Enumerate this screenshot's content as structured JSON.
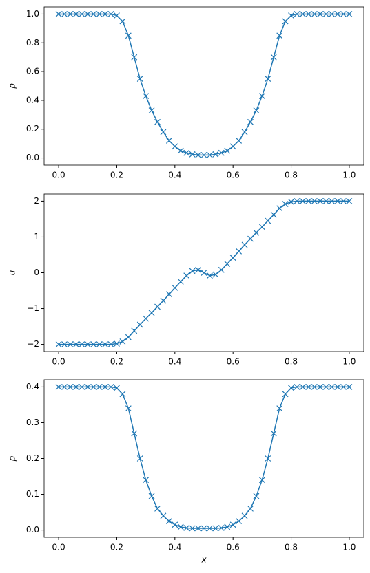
{
  "chart_data": [
    {
      "type": "line",
      "ylabel": "ρ",
      "color": "#1f77b4",
      "x": [
        0,
        0.02,
        0.04,
        0.06,
        0.08,
        0.1,
        0.12,
        0.14,
        0.16,
        0.18,
        0.2,
        0.22,
        0.24,
        0.26,
        0.28,
        0.3,
        0.32,
        0.34,
        0.36,
        0.38,
        0.4,
        0.42,
        0.44,
        0.46,
        0.48,
        0.5,
        0.52,
        0.54,
        0.56,
        0.58,
        0.6,
        0.62,
        0.64,
        0.66,
        0.68,
        0.7,
        0.72,
        0.74,
        0.76,
        0.78,
        0.8,
        0.82,
        0.84,
        0.86,
        0.88,
        0.9,
        0.92,
        0.94,
        0.96,
        0.98,
        1
      ],
      "values": [
        1,
        1,
        1,
        1,
        1,
        1,
        1,
        1,
        1,
        1,
        0.99,
        0.95,
        0.85,
        0.7,
        0.55,
        0.43,
        0.33,
        0.25,
        0.18,
        0.12,
        0.08,
        0.05,
        0.035,
        0.025,
        0.02,
        0.02,
        0.02,
        0.025,
        0.035,
        0.05,
        0.08,
        0.12,
        0.18,
        0.25,
        0.33,
        0.43,
        0.55,
        0.7,
        0.85,
        0.95,
        0.99,
        1,
        1,
        1,
        1,
        1,
        1,
        1,
        1,
        1,
        1
      ],
      "xlim": [
        -0.05,
        1.05
      ],
      "ylim": [
        -0.05,
        1.05
      ],
      "xticks": [
        {
          "value": 0,
          "label": "0.0"
        },
        0.2,
        0.4,
        0.6,
        0.8,
        {
          "value": 1,
          "label": "1.0"
        }
      ],
      "yticks": [
        {
          "value": 0,
          "label": "0.0"
        },
        0.2,
        0.4,
        0.6,
        0.8,
        {
          "value": 1,
          "label": "1.0"
        }
      ]
    },
    {
      "type": "line",
      "ylabel": "u",
      "color": "#1f77b4",
      "x": [
        0,
        0.02,
        0.04,
        0.06,
        0.08,
        0.1,
        0.12,
        0.14,
        0.16,
        0.18,
        0.2,
        0.22,
        0.24,
        0.26,
        0.28,
        0.3,
        0.32,
        0.34,
        0.36,
        0.38,
        0.4,
        0.42,
        0.44,
        0.46,
        0.48,
        0.5,
        0.52,
        0.54,
        0.56,
        0.58,
        0.6,
        0.62,
        0.64,
        0.66,
        0.68,
        0.7,
        0.72,
        0.74,
        0.76,
        0.78,
        0.8,
        0.82,
        0.84,
        0.86,
        0.88,
        0.9,
        0.92,
        0.94,
        0.96,
        0.98,
        1
      ],
      "values": [
        -2,
        -2,
        -2,
        -2,
        -2,
        -2,
        -2,
        -2,
        -2,
        -2,
        -1.98,
        -1.92,
        -1.8,
        -1.62,
        -1.45,
        -1.28,
        -1.12,
        -0.95,
        -0.78,
        -0.6,
        -0.42,
        -0.25,
        -0.08,
        0.05,
        0.08,
        0,
        -0.08,
        -0.05,
        0.08,
        0.25,
        0.42,
        0.6,
        0.78,
        0.95,
        1.12,
        1.28,
        1.45,
        1.62,
        1.8,
        1.92,
        1.98,
        2,
        2,
        2,
        2,
        2,
        2,
        2,
        2,
        2,
        2
      ],
      "xlim": [
        -0.05,
        1.05
      ],
      "ylim": [
        -2.2,
        2.2
      ],
      "xticks": [
        {
          "value": 0,
          "label": "0.0"
        },
        0.2,
        0.4,
        0.6,
        0.8,
        {
          "value": 1,
          "label": "1.0"
        }
      ],
      "yticks": [
        {
          "value": -2,
          "label": "−2"
        },
        {
          "value": -1,
          "label": "−1"
        },
        0,
        1,
        2
      ]
    },
    {
      "type": "line",
      "ylabel": "p",
      "xlabel": "x",
      "color": "#1f77b4",
      "x": [
        0,
        0.02,
        0.04,
        0.06,
        0.08,
        0.1,
        0.12,
        0.14,
        0.16,
        0.18,
        0.2,
        0.22,
        0.24,
        0.26,
        0.28,
        0.3,
        0.32,
        0.34,
        0.36,
        0.38,
        0.4,
        0.42,
        0.44,
        0.46,
        0.48,
        0.5,
        0.52,
        0.54,
        0.56,
        0.58,
        0.6,
        0.62,
        0.64,
        0.66,
        0.68,
        0.7,
        0.72,
        0.74,
        0.76,
        0.78,
        0.8,
        0.82,
        0.84,
        0.86,
        0.88,
        0.9,
        0.92,
        0.94,
        0.96,
        0.98,
        1
      ],
      "values": [
        0.4,
        0.4,
        0.4,
        0.4,
        0.4,
        0.4,
        0.4,
        0.4,
        0.4,
        0.4,
        0.397,
        0.38,
        0.34,
        0.27,
        0.2,
        0.14,
        0.095,
        0.06,
        0.04,
        0.025,
        0.015,
        0.009,
        0.006,
        0.005,
        0.005,
        0.005,
        0.005,
        0.005,
        0.006,
        0.009,
        0.015,
        0.025,
        0.04,
        0.06,
        0.095,
        0.14,
        0.2,
        0.27,
        0.34,
        0.38,
        0.397,
        0.4,
        0.4,
        0.4,
        0.4,
        0.4,
        0.4,
        0.4,
        0.4,
        0.4,
        0.4
      ],
      "xlim": [
        -0.05,
        1.05
      ],
      "ylim": [
        -0.02,
        0.42
      ],
      "xticks": [
        {
          "value": 0,
          "label": "0.0"
        },
        0.2,
        0.4,
        0.6,
        0.8,
        {
          "value": 1,
          "label": "1.0"
        }
      ],
      "yticks": [
        {
          "value": 0,
          "label": "0.0"
        },
        0.1,
        0.2,
        0.3,
        0.4
      ]
    }
  ]
}
